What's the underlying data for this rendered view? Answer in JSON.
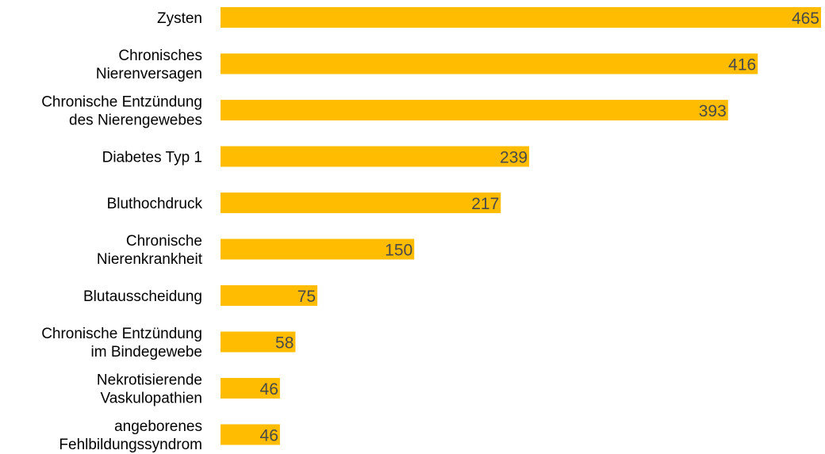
{
  "chart_data": {
    "type": "bar",
    "orientation": "horizontal",
    "categories": [
      "Zysten",
      "Chronisches Nierenversagen",
      "Chronische Entzündung des Nierengewebes",
      "Diabetes Typ 1",
      "Bluthochdruck",
      "Chronische Nierenkrankheit",
      "Blutausscheidung",
      "Chronische Entzündung im Bindegewebe",
      "Nekrotisierende Vaskulopathien",
      "angeborenes Fehlbildungssyndrom"
    ],
    "category_lines": [
      [
        "Zysten"
      ],
      [
        "Chronisches",
        "Nierenversagen"
      ],
      [
        "Chronische Entzündung",
        "des Nierengewebes"
      ],
      [
        "Diabetes Typ 1"
      ],
      [
        "Bluthochdruck"
      ],
      [
        "Chronische",
        "Nierenkrankheit"
      ],
      [
        "Blutausscheidung"
      ],
      [
        "Chronische Entzündung",
        "im Bindegewebe"
      ],
      [
        "Nekrotisierende",
        "Vaskulopathien"
      ],
      [
        "angeborenes",
        "Fehlbildungssyndrom"
      ]
    ],
    "values": [
      465,
      416,
      393,
      239,
      217,
      150,
      75,
      58,
      46,
      46
    ],
    "xlim": [
      0,
      465
    ],
    "grid": false,
    "legend": "none",
    "bar_color": "#FFBC00",
    "label_color": "#4A4A4A"
  }
}
